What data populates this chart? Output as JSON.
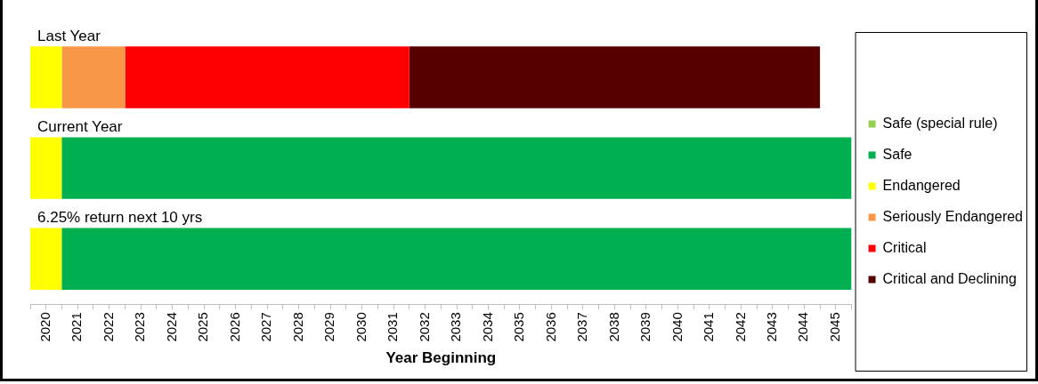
{
  "chart_data": {
    "type": "bar",
    "orientation": "horizontal",
    "xlabel": "Year Beginning",
    "categories": [
      "Last Year",
      "Current Year",
      "6.25% return next 10 yrs"
    ],
    "series": [
      {
        "name": "Safe (special rule)",
        "color": "#92d050",
        "values": [
          null,
          null,
          null
        ],
        "base": [
          null,
          null,
          null
        ]
      },
      {
        "name": "Safe",
        "color": "#00b050",
        "values": [
          null,
          25,
          25
        ],
        "base": [
          null,
          2020.5,
          2020.5
        ]
      },
      {
        "name": "Endangered",
        "color": "#ffff00",
        "values": [
          1,
          1,
          1
        ],
        "base": [
          2019.5,
          2019.5,
          2019.5
        ]
      },
      {
        "name": "Seriously Endangered",
        "color": "#f79646",
        "values": [
          2,
          null,
          null
        ],
        "base": [
          2020.5,
          null,
          null
        ]
      },
      {
        "name": "Critical",
        "color": "#ff0000",
        "values": [
          9,
          null,
          null
        ],
        "base": [
          2022.5,
          null,
          null
        ]
      },
      {
        "name": "Critical and Declining",
        "color": "#560000",
        "values": [
          13,
          null,
          null
        ],
        "base": [
          2031.5,
          null,
          null
        ]
      }
    ],
    "xlim": [
      2019.5,
      2045.5
    ],
    "xticks": [
      {
        "value": 2019.5,
        "label": null
      },
      2020,
      {
        "value": 2020.5,
        "label": null
      },
      2021,
      {
        "value": 2021.5,
        "label": null
      },
      2022,
      {
        "value": 2022.5,
        "label": null
      },
      2023,
      {
        "value": 2023.5,
        "label": null
      },
      2024,
      {
        "value": 2024.5,
        "label": null
      },
      2025,
      {
        "value": 2025.5,
        "label": null
      },
      2026,
      {
        "value": 2026.5,
        "label": null
      },
      2027,
      {
        "value": 2027.5,
        "label": null
      },
      2028,
      {
        "value": 2028.5,
        "label": null
      },
      2029,
      {
        "value": 2029.5,
        "label": null
      },
      2030,
      {
        "value": 2030.5,
        "label": null
      },
      2031,
      {
        "value": 2031.5,
        "label": null
      },
      2032,
      {
        "value": 2032.5,
        "label": null
      },
      2033,
      {
        "value": 2033.5,
        "label": null
      },
      2034,
      {
        "value": 2034.5,
        "label": null
      },
      2035,
      {
        "value": 2035.5,
        "label": null
      },
      2036,
      {
        "value": 2036.5,
        "label": null
      },
      2037,
      {
        "value": 2037.5,
        "label": null
      },
      2038,
      {
        "value": 2038.5,
        "label": null
      },
      2039,
      {
        "value": 2039.5,
        "label": null
      },
      2040,
      {
        "value": 2040.5,
        "label": null
      },
      2041,
      {
        "value": 2041.5,
        "label": null
      },
      2042,
      {
        "value": 2042.5,
        "label": null
      },
      2043,
      {
        "value": 2043.5,
        "label": null
      },
      2044,
      {
        "value": 2044.5,
        "label": null
      },
      2045,
      {
        "value": 2045.5,
        "label": null
      }
    ],
    "grid": false,
    "legend": "right"
  }
}
